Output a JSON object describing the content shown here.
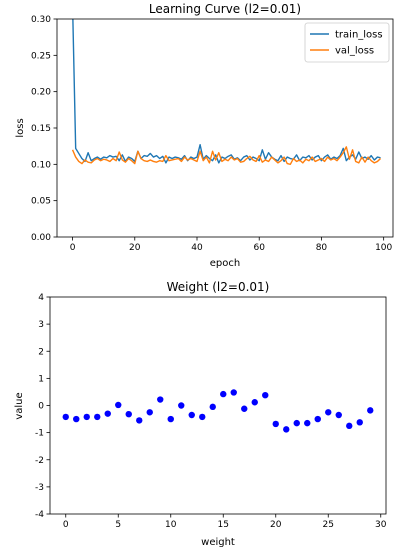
{
  "chart_data": [
    {
      "type": "line",
      "title": "Learning Curve (l2=0.01)",
      "xlabel": "epoch",
      "ylabel": "loss",
      "xlim": [
        -5,
        103
      ],
      "ylim": [
        0,
        0.3
      ],
      "xticks": [
        0,
        20,
        40,
        60,
        80,
        100
      ],
      "yticks": [
        0.0,
        0.05,
        0.1,
        0.15,
        0.2,
        0.25,
        0.3
      ],
      "ytick_labels": [
        "0.00",
        "0.05",
        "0.10",
        "0.15",
        "0.20",
        "0.25",
        "0.30"
      ],
      "legend": "top-right",
      "series": [
        {
          "name": "train_loss",
          "color": "#1f77b4",
          "x": [
            0,
            1,
            2,
            3,
            4,
            5,
            6,
            7,
            8,
            9,
            10,
            11,
            12,
            13,
            14,
            15,
            16,
            17,
            18,
            19,
            20,
            21,
            22,
            23,
            24,
            25,
            26,
            27,
            28,
            29,
            30,
            31,
            32,
            33,
            34,
            35,
            36,
            37,
            38,
            39,
            40,
            41,
            42,
            43,
            44,
            45,
            46,
            47,
            48,
            49,
            50,
            51,
            52,
            53,
            54,
            55,
            56,
            57,
            58,
            59,
            60,
            61,
            62,
            63,
            64,
            65,
            66,
            67,
            68,
            69,
            70,
            71,
            72,
            73,
            74,
            75,
            76,
            77,
            78,
            79,
            80,
            81,
            82,
            83,
            84,
            85,
            86,
            87,
            88,
            89,
            90,
            91,
            92,
            93,
            94,
            95,
            96,
            97,
            98,
            99
          ],
          "values": [
            0.32,
            0.122,
            0.115,
            0.108,
            0.104,
            0.116,
            0.105,
            0.108,
            0.11,
            0.107,
            0.11,
            0.109,
            0.112,
            0.11,
            0.111,
            0.105,
            0.113,
            0.104,
            0.11,
            0.108,
            0.104,
            0.118,
            0.108,
            0.112,
            0.111,
            0.115,
            0.11,
            0.112,
            0.108,
            0.111,
            0.102,
            0.11,
            0.108,
            0.11,
            0.109,
            0.107,
            0.112,
            0.105,
            0.11,
            0.108,
            0.11,
            0.127,
            0.107,
            0.112,
            0.108,
            0.105,
            0.113,
            0.102,
            0.11,
            0.108,
            0.111,
            0.113,
            0.107,
            0.109,
            0.105,
            0.11,
            0.112,
            0.106,
            0.11,
            0.108,
            0.105,
            0.12,
            0.107,
            0.116,
            0.11,
            0.107,
            0.105,
            0.112,
            0.104,
            0.11,
            0.108,
            0.107,
            0.113,
            0.105,
            0.11,
            0.109,
            0.112,
            0.106,
            0.11,
            0.112,
            0.105,
            0.11,
            0.113,
            0.107,
            0.11,
            0.108,
            0.112,
            0.122,
            0.105,
            0.11,
            0.113,
            0.107,
            0.117,
            0.108,
            0.11,
            0.107,
            0.112,
            0.106,
            0.11,
            0.109
          ]
        },
        {
          "name": "val_loss",
          "color": "#ff7f0e",
          "x": [
            0,
            1,
            2,
            3,
            4,
            5,
            6,
            7,
            8,
            9,
            10,
            11,
            12,
            13,
            14,
            15,
            16,
            17,
            18,
            19,
            20,
            21,
            22,
            23,
            24,
            25,
            26,
            27,
            28,
            29,
            30,
            31,
            32,
            33,
            34,
            35,
            36,
            37,
            38,
            39,
            40,
            41,
            42,
            43,
            44,
            45,
            46,
            47,
            48,
            49,
            50,
            51,
            52,
            53,
            54,
            55,
            56,
            57,
            58,
            59,
            60,
            61,
            62,
            63,
            64,
            65,
            66,
            67,
            68,
            69,
            70,
            71,
            72,
            73,
            74,
            75,
            76,
            77,
            78,
            79,
            80,
            81,
            82,
            83,
            84,
            85,
            86,
            87,
            88,
            89,
            90,
            91,
            92,
            93,
            94,
            95,
            96,
            97,
            98,
            99
          ],
          "values": [
            0.12,
            0.11,
            0.104,
            0.101,
            0.106,
            0.103,
            0.102,
            0.106,
            0.108,
            0.105,
            0.107,
            0.106,
            0.104,
            0.108,
            0.105,
            0.117,
            0.106,
            0.103,
            0.108,
            0.105,
            0.101,
            0.118,
            0.108,
            0.105,
            0.104,
            0.106,
            0.104,
            0.103,
            0.105,
            0.104,
            0.112,
            0.105,
            0.106,
            0.107,
            0.108,
            0.104,
            0.11,
            0.106,
            0.108,
            0.106,
            0.104,
            0.118,
            0.105,
            0.11,
            0.102,
            0.118,
            0.106,
            0.116,
            0.104,
            0.107,
            0.105,
            0.11,
            0.106,
            0.108,
            0.103,
            0.104,
            0.108,
            0.111,
            0.106,
            0.104,
            0.112,
            0.103,
            0.106,
            0.104,
            0.11,
            0.106,
            0.102,
            0.105,
            0.11,
            0.101,
            0.1,
            0.108,
            0.104,
            0.106,
            0.102,
            0.107,
            0.105,
            0.11,
            0.104,
            0.106,
            0.108,
            0.104,
            0.11,
            0.106,
            0.108,
            0.105,
            0.11,
            0.116,
            0.124,
            0.107,
            0.12,
            0.104,
            0.102,
            0.11,
            0.103,
            0.11,
            0.105,
            0.102,
            0.104,
            0.108
          ]
        }
      ]
    },
    {
      "type": "scatter",
      "title": "Weight (l2=0.01)",
      "xlabel": "weight",
      "ylabel": "value",
      "xlim": [
        -1.5,
        30.5
      ],
      "ylim": [
        -4,
        4
      ],
      "xticks": [
        0,
        5,
        10,
        15,
        20,
        25,
        30
      ],
      "yticks": [
        -4,
        -3,
        -2,
        -1,
        0,
        1,
        2,
        3,
        4
      ],
      "series": [
        {
          "color": "#0000ff",
          "x": [
            0,
            1,
            2,
            3,
            4,
            5,
            6,
            7,
            8,
            9,
            10,
            11,
            12,
            13,
            14,
            15,
            16,
            17,
            18,
            19,
            20,
            21,
            22,
            23,
            24,
            25,
            26,
            27,
            28,
            29
          ],
          "values": [
            -0.42,
            -0.5,
            -0.42,
            -0.42,
            -0.3,
            0.02,
            -0.32,
            -0.55,
            -0.25,
            0.22,
            -0.5,
            0.0,
            -0.35,
            -0.42,
            -0.05,
            0.42,
            0.48,
            -0.12,
            0.12,
            0.38,
            -0.68,
            -0.88,
            -0.65,
            -0.65,
            -0.5,
            -0.25,
            -0.35,
            -0.75,
            -0.62,
            -0.18
          ]
        }
      ]
    }
  ]
}
